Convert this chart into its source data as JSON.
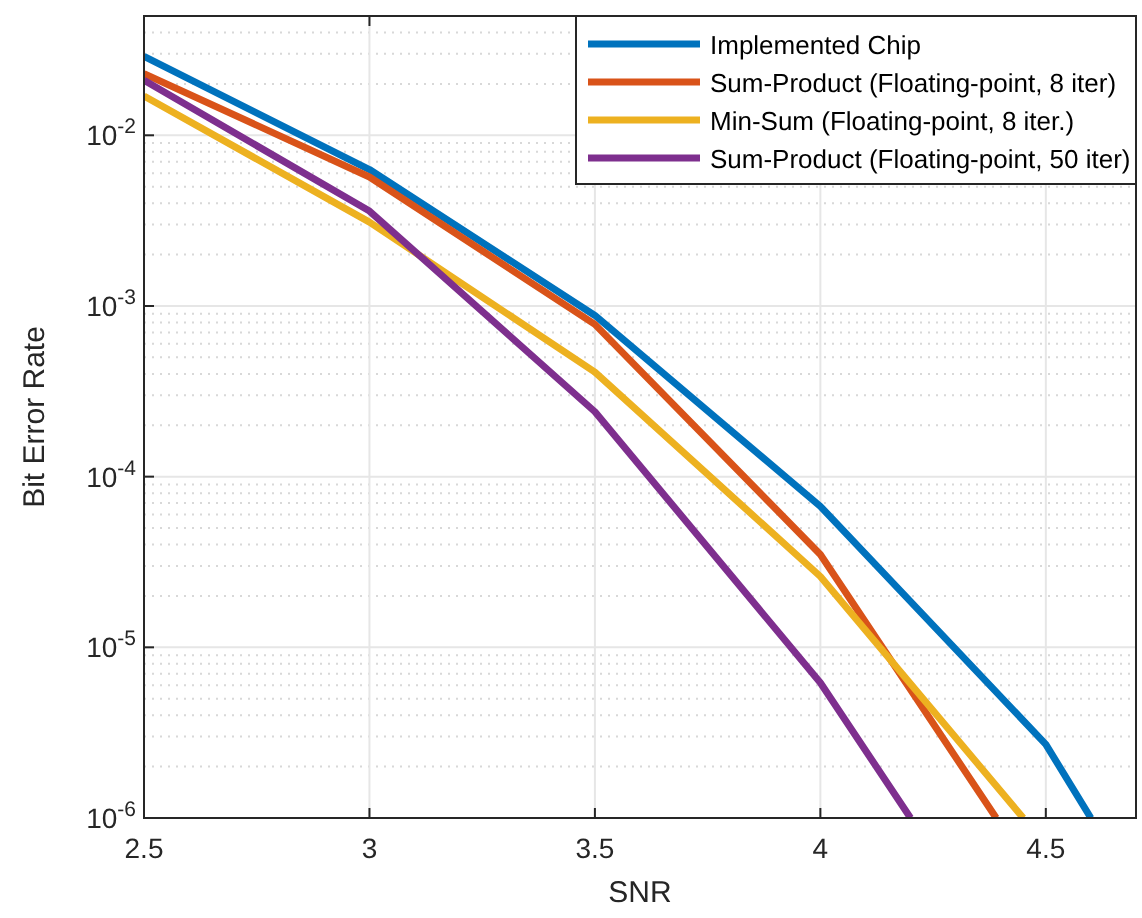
{
  "chart_data": {
    "type": "line",
    "xlabel": "SNR",
    "ylabel": "Bit Error Rate",
    "log": "y",
    "grid": true,
    "legend": "top right",
    "line_style": "solid",
    "marker": "none",
    "xlim": [
      2.5,
      4.7
    ],
    "xticks": [
      2.5,
      3,
      3.5,
      4,
      4.5
    ],
    "ylim": [
      1e-06,
      0.05
    ],
    "yticks": [
      {
        "value": 1e-06,
        "label": "10$^{-6}$"
      },
      {
        "value": 1e-05,
        "label": "10$^{-5}$"
      },
      {
        "value": 0.0001,
        "label": "10$^{-4}$"
      },
      {
        "value": 0.001,
        "label": "10$^{-3}$"
      },
      {
        "value": 0.01,
        "label": "10$^{-2}$"
      }
    ],
    "series": [
      {
        "name": "Implemented Chip",
        "color": "#0072bd",
        "x": [
          2.5,
          3,
          3.5,
          4,
          4.5,
          4.6
        ],
        "values": [
          0.029,
          0.0063,
          0.00088,
          6.7e-05,
          2.7e-06,
          1e-06
        ]
      },
      {
        "name": "Sum-Product (Floating-point, 8 iter)",
        "color": "#d95319",
        "x": [
          2.5,
          3,
          3.5,
          4,
          4.39
        ],
        "values": [
          0.023,
          0.0057,
          0.00078,
          3.5e-05,
          1e-06
        ]
      },
      {
        "name": "Min-Sum (Floating-point, 8 iter.)",
        "color": "#edb120",
        "x": [
          2.5,
          3,
          3.5,
          4,
          4.45
        ],
        "values": [
          0.017,
          0.0031,
          0.00041,
          2.6e-05,
          1e-06
        ]
      },
      {
        "name": "Sum-Product (Floating-point, 50 iter)",
        "color": "#7e2f8e",
        "x": [
          2.5,
          3,
          3.5,
          4,
          4.2
        ],
        "values": [
          0.021,
          0.0036,
          0.00024,
          6.2e-06,
          1e-06
        ]
      }
    ]
  }
}
